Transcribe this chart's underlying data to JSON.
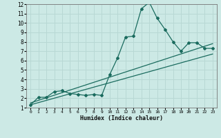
{
  "xlabel": "Humidex (Indice chaleur)",
  "ylabel": "",
  "background_color": "#cce9e5",
  "grid_color": "#b8d8d4",
  "line_color": "#1a6b5e",
  "xlim": [
    -0.5,
    23.5
  ],
  "ylim": [
    1,
    12
  ],
  "xticks": [
    0,
    1,
    2,
    3,
    4,
    5,
    6,
    7,
    8,
    9,
    10,
    11,
    12,
    13,
    14,
    15,
    16,
    17,
    18,
    19,
    20,
    21,
    22,
    23
  ],
  "yticks": [
    1,
    2,
    3,
    4,
    5,
    6,
    7,
    8,
    9,
    10,
    11,
    12
  ],
  "main_x": [
    0,
    1,
    2,
    3,
    4,
    5,
    6,
    7,
    8,
    9,
    10,
    11,
    12,
    13,
    14,
    15,
    16,
    17,
    18,
    19,
    20,
    21,
    22,
    23
  ],
  "main_y": [
    1.3,
    2.1,
    2.1,
    2.7,
    2.8,
    2.5,
    2.4,
    2.3,
    2.4,
    2.3,
    4.5,
    6.3,
    8.5,
    8.6,
    11.5,
    12.2,
    10.5,
    9.3,
    8.0,
    7.0,
    7.9,
    7.9,
    7.3,
    7.3
  ],
  "line1_x": [
    0,
    23
  ],
  "line1_y": [
    1.5,
    7.8
  ],
  "line2_x": [
    0,
    23
  ],
  "line2_y": [
    1.3,
    6.7
  ]
}
